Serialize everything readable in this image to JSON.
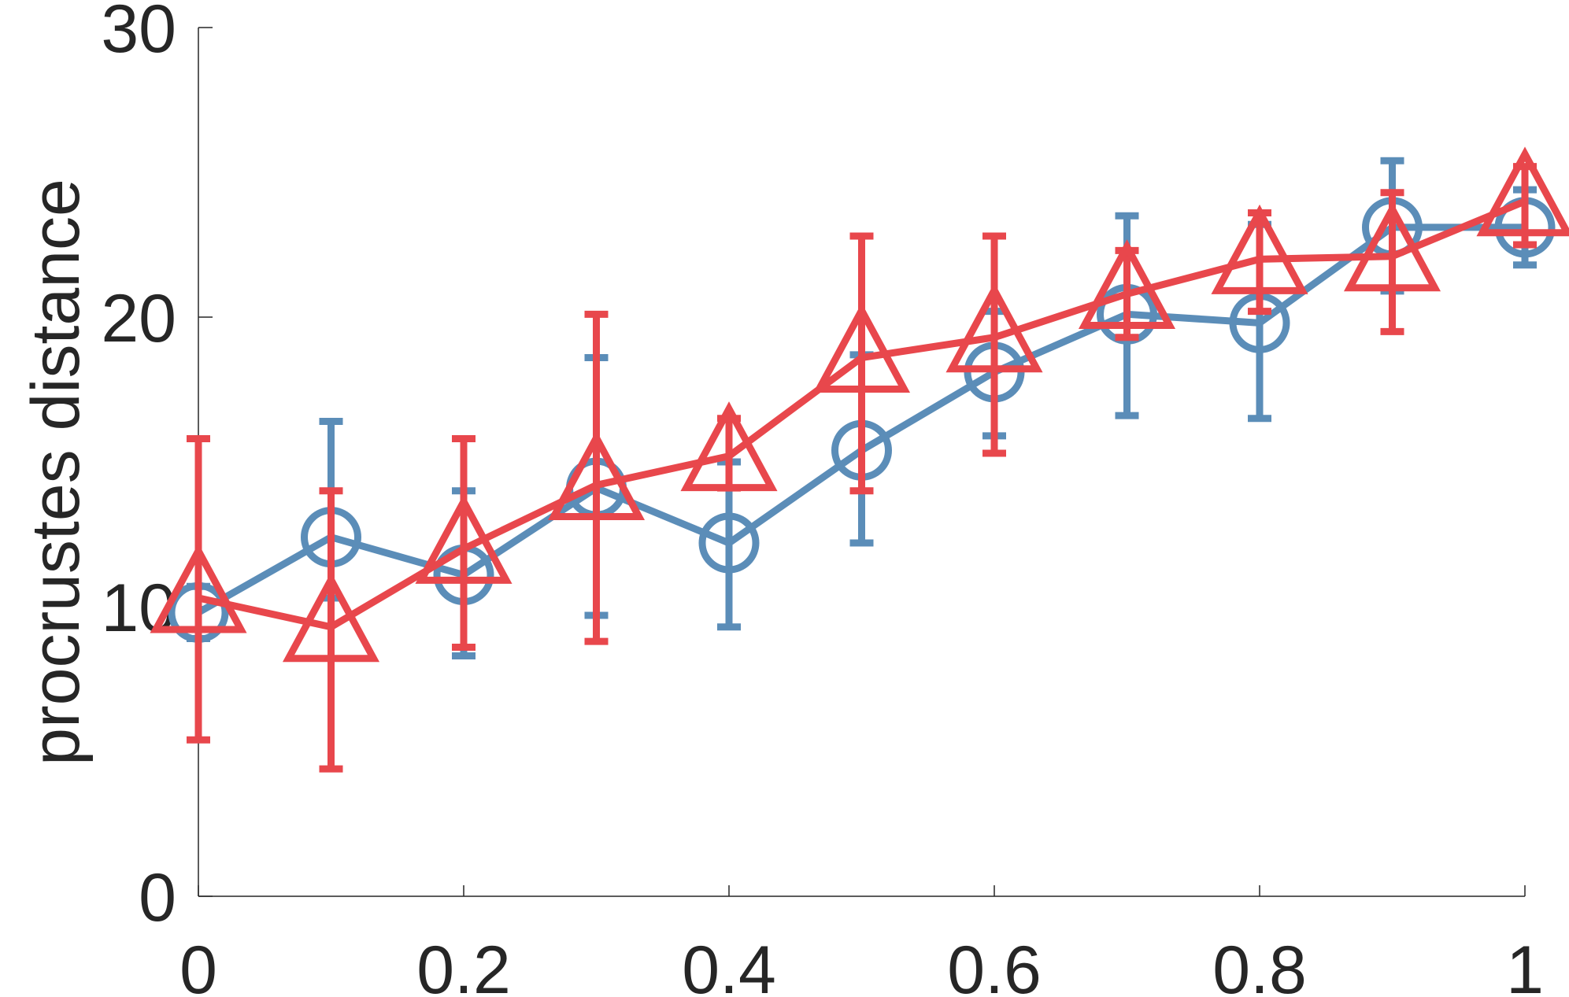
{
  "chart_data": {
    "type": "line",
    "title": "",
    "xlabel": "",
    "ylabel": "procrustes distance",
    "xlim": [
      0,
      1
    ],
    "ylim": [
      0,
      30
    ],
    "x_ticks": [
      0,
      0.2,
      0.4,
      0.6,
      0.8,
      1
    ],
    "x_tick_labels": [
      "0",
      "0.2",
      "0.4",
      "0.6",
      "0.8",
      "1"
    ],
    "y_ticks": [
      0,
      10,
      20,
      30
    ],
    "y_tick_labels": [
      "0",
      "10",
      "20",
      "30"
    ],
    "grid": false,
    "x": [
      0,
      0.1,
      0.2,
      0.3,
      0.4,
      0.5,
      0.6,
      0.7,
      0.8,
      0.9,
      1.0
    ],
    "series": [
      {
        "marker": "circle",
        "color": "#5b8db8",
        "values": [
          9.8,
          12.4,
          11.1,
          14.1,
          12.2,
          15.4,
          18.1,
          20.1,
          19.8,
          23.1,
          23.1
        ],
        "err_low": [
          8.9,
          10.3,
          8.3,
          9.7,
          9.3,
          12.2,
          15.9,
          16.6,
          16.5,
          20.9,
          21.8
        ],
        "err_high": [
          10.7,
          16.4,
          14.0,
          18.6,
          15.0,
          18.7,
          20.2,
          23.5,
          23.2,
          25.4,
          24.4
        ]
      },
      {
        "marker": "triangle",
        "color": "#e8474c",
        "values": [
          10.3,
          9.3,
          12.0,
          14.2,
          15.2,
          18.6,
          19.3,
          20.8,
          22.0,
          22.1,
          24.0
        ],
        "err_low": [
          5.4,
          4.4,
          8.6,
          8.8,
          14.1,
          14.0,
          15.3,
          19.3,
          20.2,
          19.5,
          22.5
        ],
        "err_high": [
          15.8,
          14.0,
          15.8,
          20.1,
          16.5,
          22.8,
          22.8,
          22.3,
          23.6,
          24.3,
          25.2
        ]
      }
    ]
  }
}
